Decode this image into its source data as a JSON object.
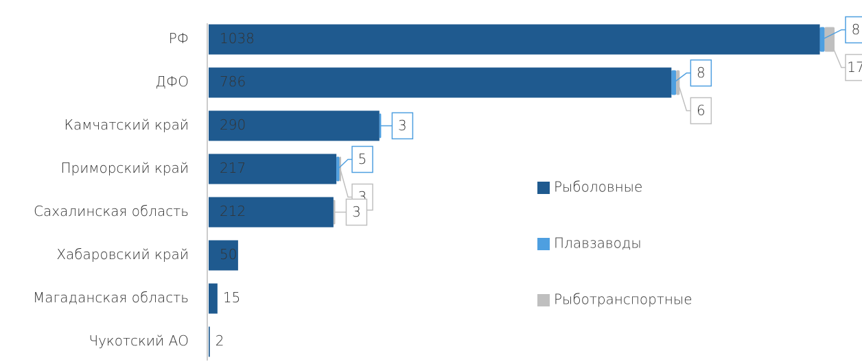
{
  "chart_data": {
    "type": "stacked-bar-horizontal",
    "categories": [
      "РФ",
      "ДФО",
      "Камчатский край",
      "Приморский край",
      "Сахалинская область",
      "Хабаровский край",
      "Магаданская область",
      "Чукотский АО"
    ],
    "series": [
      {
        "name": "Рыболовные",
        "color": "#1f5a8f",
        "values": [
          1038,
          786,
          290,
          217,
          212,
          50,
          15,
          2
        ]
      },
      {
        "name": "Плавзаводы",
        "color": "#4e9fe0",
        "values": [
          8,
          8,
          3,
          5,
          null,
          null,
          null,
          null
        ]
      },
      {
        "name": "Рыботранспортные",
        "color": "#bfbfbf",
        "values": [
          17,
          6,
          null,
          3,
          3,
          null,
          null,
          null
        ]
      }
    ],
    "legend": "right"
  }
}
